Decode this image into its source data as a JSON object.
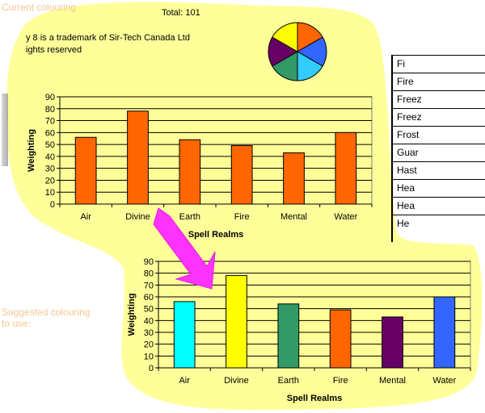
{
  "header": {
    "total": "Total: 101",
    "trademark": "y 8 is a trademark of Sir-Tech Canada Ltd",
    "rights": "ights reserved"
  },
  "captions": {
    "current": "Current colouring",
    "suggested_line1": "Suggested colouring",
    "suggested_line2": "to use:"
  },
  "spell_list": [
    "Fi",
    "Fire",
    "Freez",
    "Freez",
    "Frost",
    "Guar",
    "Hast",
    "Hea",
    "Hea",
    "He"
  ],
  "pie_colors": [
    "#ff6600",
    "#3366ff",
    "#33ccff",
    "#339966",
    "#660066",
    "#ffff00"
  ],
  "chart_data": [
    {
      "type": "bar",
      "categories": [
        "Air",
        "Divine",
        "Earth",
        "Fire",
        "Mental",
        "Water"
      ],
      "values": [
        56,
        78,
        54,
        49,
        43,
        60
      ],
      "xlabel": "Spell Realms",
      "ylabel": "Weighting",
      "ylim": [
        0,
        90
      ],
      "yticks": [
        "0",
        "10",
        "20",
        "30",
        "40",
        "50",
        "60",
        "70",
        "80",
        "90"
      ],
      "grid": true,
      "colors": [
        "#ff6600",
        "#ff6600",
        "#ff6600",
        "#ff6600",
        "#ff6600",
        "#ff6600"
      ]
    },
    {
      "type": "bar",
      "categories": [
        "Air",
        "Divine",
        "Earth",
        "Fire",
        "Mental",
        "Water"
      ],
      "values": [
        56,
        78,
        54,
        49,
        43,
        60
      ],
      "xlabel": "Spell Realms",
      "ylabel": "Weighting",
      "ylim": [
        0,
        90
      ],
      "yticks": [
        "0",
        "10",
        "20",
        "30",
        "40",
        "50",
        "60",
        "70",
        "80",
        "90"
      ],
      "grid": true,
      "colors": [
        "#00ffff",
        "#ffff00",
        "#339966",
        "#ff6600",
        "#660066",
        "#3366ff"
      ]
    }
  ]
}
